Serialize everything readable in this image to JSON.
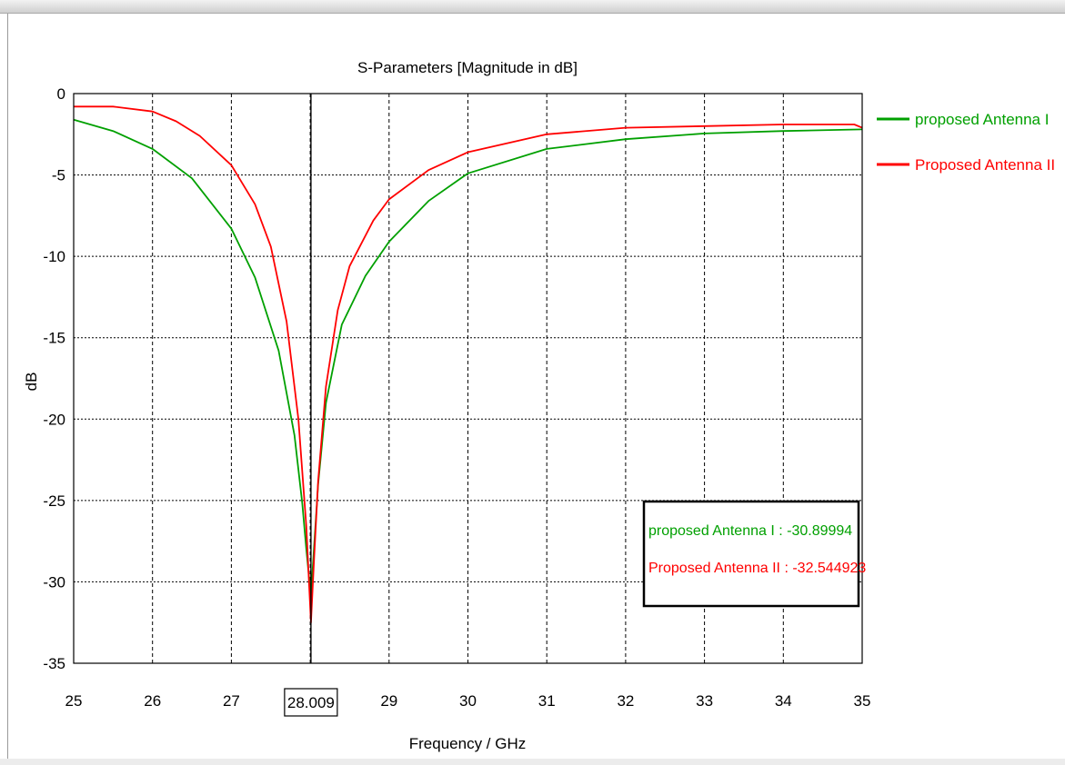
{
  "chart_data": {
    "type": "line",
    "title": "S-Parameters [Magnitude in dB]",
    "xlabel": "Frequency / GHz",
    "ylabel": "dB",
    "xlim": [
      25,
      35
    ],
    "ylim": [
      -35,
      0
    ],
    "xticks": [
      "25",
      "26",
      "27",
      "28",
      "29",
      "30",
      "31",
      "32",
      "33",
      "34",
      "35"
    ],
    "yticks": [
      "0",
      "-5",
      "-10",
      "-15",
      "-20",
      "-25",
      "-30",
      "-35"
    ],
    "grid": true,
    "legend_position": "right, outside plot top",
    "marker": {
      "x": 28.009,
      "label": "28.009",
      "readouts": [
        {
          "series": "proposed Antenna I",
          "text": "proposed Antenna I : -30.89994"
        },
        {
          "series": "Proposed Antenna II",
          "text": "Proposed Antenna II : -32.544923"
        }
      ]
    },
    "series": [
      {
        "name": "proposed Antenna I",
        "color": "#00a000",
        "x": [
          25,
          25.5,
          26,
          26.5,
          27,
          27.3,
          27.6,
          27.8,
          27.9,
          27.95,
          28.009,
          28.05,
          28.1,
          28.2,
          28.4,
          28.7,
          29,
          29.5,
          30,
          31,
          32,
          33,
          34,
          35
        ],
        "y": [
          -1.6,
          -2.3,
          -3.4,
          -5.2,
          -8.3,
          -11.3,
          -15.8,
          -21.0,
          -25.2,
          -28.0,
          -30.9,
          -27.8,
          -24.0,
          -19.0,
          -14.2,
          -11.2,
          -9.1,
          -6.6,
          -4.9,
          -3.4,
          -2.8,
          -2.45,
          -2.3,
          -2.2
        ]
      },
      {
        "name": "Proposed Antenna II",
        "color": "#ff0000",
        "x": [
          25,
          25.5,
          26,
          26.3,
          26.6,
          27,
          27.3,
          27.5,
          27.7,
          27.85,
          27.95,
          28.009,
          28.05,
          28.1,
          28.2,
          28.35,
          28.5,
          28.8,
          29,
          29.5,
          30,
          31,
          32,
          33,
          34,
          34.9,
          35
        ],
        "y": [
          -0.8,
          -0.8,
          -1.1,
          -1.7,
          -2.6,
          -4.4,
          -6.8,
          -9.4,
          -14.0,
          -20.0,
          -26.6,
          -32.5,
          -28.5,
          -23.8,
          -18.0,
          -13.3,
          -10.6,
          -7.8,
          -6.5,
          -4.7,
          -3.6,
          -2.5,
          -2.1,
          -2.0,
          -1.9,
          -1.9,
          -2.1
        ]
      }
    ]
  }
}
